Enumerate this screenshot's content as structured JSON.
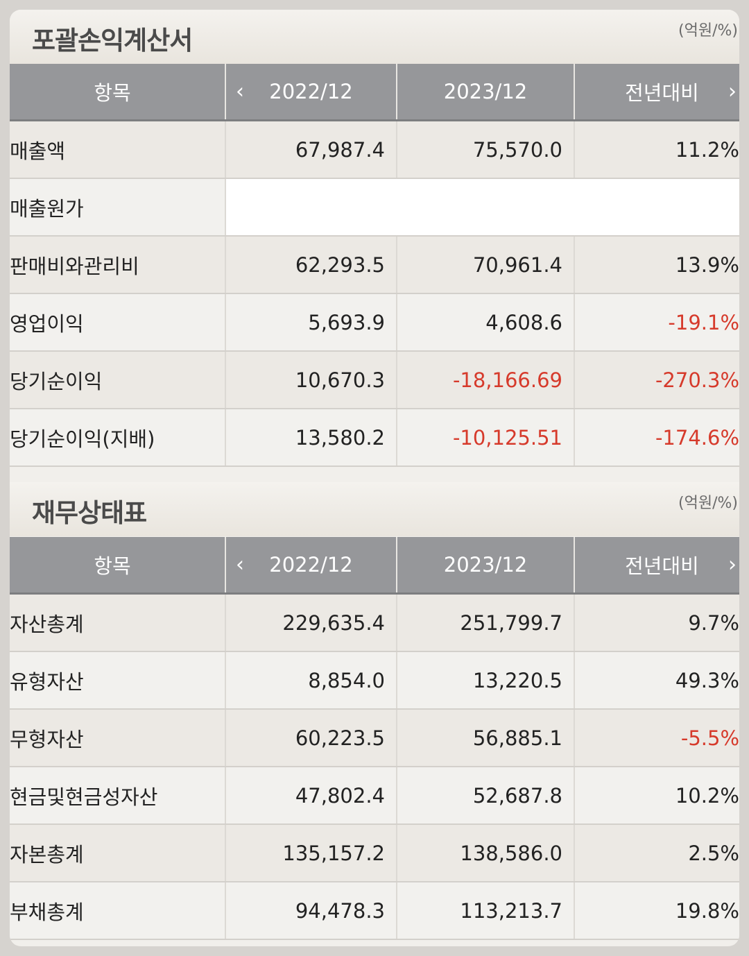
{
  "income": {
    "title": "포괄손익계산서",
    "unit": "(억원/%)",
    "headers": [
      "항목",
      "2022/12",
      "2023/12",
      "전년대비"
    ],
    "rows": [
      {
        "label": "매출액",
        "v1": "67,987.4",
        "v2": "75,570.0",
        "v3": "11.2%"
      },
      {
        "label": "매출원가",
        "v1": "",
        "v2": "",
        "v3": ""
      },
      {
        "label": "판매비와관리비",
        "v1": "62,293.5",
        "v2": "70,961.4",
        "v3": "13.9%"
      },
      {
        "label": "영업이익",
        "v1": "5,693.9",
        "v2": "4,608.6",
        "v3": "-19.1%"
      },
      {
        "label": "당기순이익",
        "v1": "10,670.3",
        "v2": "-18,166.69",
        "v3": "-270.3%"
      },
      {
        "label": "당기순이익(지배)",
        "v1": "13,580.2",
        "v2": "-10,125.51",
        "v3": "-174.6%"
      }
    ]
  },
  "balance": {
    "title": "재무상태표",
    "unit": "(억원/%)",
    "headers": [
      "항목",
      "2022/12",
      "2023/12",
      "전년대비"
    ],
    "rows": [
      {
        "label": "자산총계",
        "v1": "229,635.4",
        "v2": "251,799.7",
        "v3": "9.7%"
      },
      {
        "label": "유형자산",
        "v1": "8,854.0",
        "v2": "13,220.5",
        "v3": "49.3%"
      },
      {
        "label": "무형자산",
        "v1": "60,223.5",
        "v2": "56,885.1",
        "v3": "-5.5%"
      },
      {
        "label": "현금및현금성자산",
        "v1": "47,802.4",
        "v2": "52,687.8",
        "v3": "10.2%"
      },
      {
        "label": "자본총계",
        "v1": "135,157.2",
        "v2": "138,586.0",
        "v3": "2.5%"
      },
      {
        "label": "부채총계",
        "v1": "94,478.3",
        "v2": "113,213.7",
        "v3": "19.8%"
      }
    ]
  },
  "icons": {
    "prev": "chevron-left-icon",
    "next": "chevron-right-icon"
  },
  "colors": {
    "negative": "#d63a2b",
    "header_bg": "#96979a"
  }
}
